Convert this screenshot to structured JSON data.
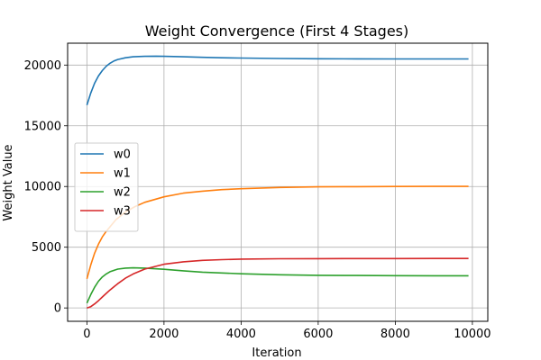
{
  "chart_data": {
    "type": "line",
    "title": "Weight Convergence (First 4 Stages)",
    "xlabel": "Iteration",
    "ylabel": "Weight Value",
    "xlim": [
      -500,
      10400
    ],
    "ylim": [
      -1100,
      21800
    ],
    "xticks": [
      0,
      2000,
      4000,
      6000,
      8000,
      10000
    ],
    "yticks": [
      0,
      5000,
      10000,
      15000,
      20000
    ],
    "grid": true,
    "legend_position": "center-left",
    "series": [
      {
        "name": "w0",
        "color": "#1f77b4",
        "x": [
          0,
          100,
          200,
          300,
          400,
          500,
          600,
          700,
          800,
          1000,
          1200,
          1500,
          1800,
          2000,
          2500,
          3000,
          3500,
          4000,
          5000,
          6000,
          7000,
          8000,
          9000,
          9900
        ],
        "y": [
          16700,
          17700,
          18500,
          19100,
          19550,
          19900,
          20150,
          20330,
          20460,
          20600,
          20680,
          20720,
          20730,
          20720,
          20680,
          20640,
          20600,
          20580,
          20540,
          20520,
          20510,
          20505,
          20500,
          20500
        ]
      },
      {
        "name": "w1",
        "color": "#ff7f0e",
        "x": [
          0,
          100,
          200,
          300,
          400,
          500,
          750,
          1000,
          1250,
          1500,
          2000,
          2500,
          3000,
          3500,
          4000,
          5000,
          6000,
          7000,
          8000,
          9000,
          9900
        ],
        "y": [
          2400,
          3550,
          4500,
          5250,
          5850,
          6300,
          7250,
          7900,
          8350,
          8700,
          9150,
          9450,
          9620,
          9740,
          9820,
          9920,
          9970,
          9990,
          10000,
          10010,
          10010
        ]
      },
      {
        "name": "w2",
        "color": "#2ca02c",
        "x": [
          0,
          100,
          200,
          300,
          400,
          500,
          600,
          800,
          1000,
          1200,
          1500,
          2000,
          2500,
          3000,
          4000,
          5000,
          6000,
          7000,
          8000,
          9000,
          9900
        ],
        "y": [
          400,
          1100,
          1700,
          2200,
          2550,
          2800,
          2980,
          3200,
          3280,
          3300,
          3280,
          3180,
          3060,
          2950,
          2810,
          2730,
          2690,
          2670,
          2660,
          2650,
          2650
        ]
      },
      {
        "name": "w3",
        "color": "#d62728",
        "x": [
          0,
          100,
          200,
          300,
          400,
          500,
          600,
          800,
          1000,
          1200,
          1500,
          2000,
          2500,
          3000,
          3500,
          4000,
          5000,
          6000,
          7000,
          8000,
          9000,
          9900
        ],
        "y": [
          0,
          110,
          330,
          600,
          900,
          1200,
          1480,
          2000,
          2450,
          2800,
          3200,
          3600,
          3800,
          3920,
          3980,
          4020,
          4050,
          4060,
          4065,
          4068,
          4070,
          4070
        ]
      }
    ]
  }
}
